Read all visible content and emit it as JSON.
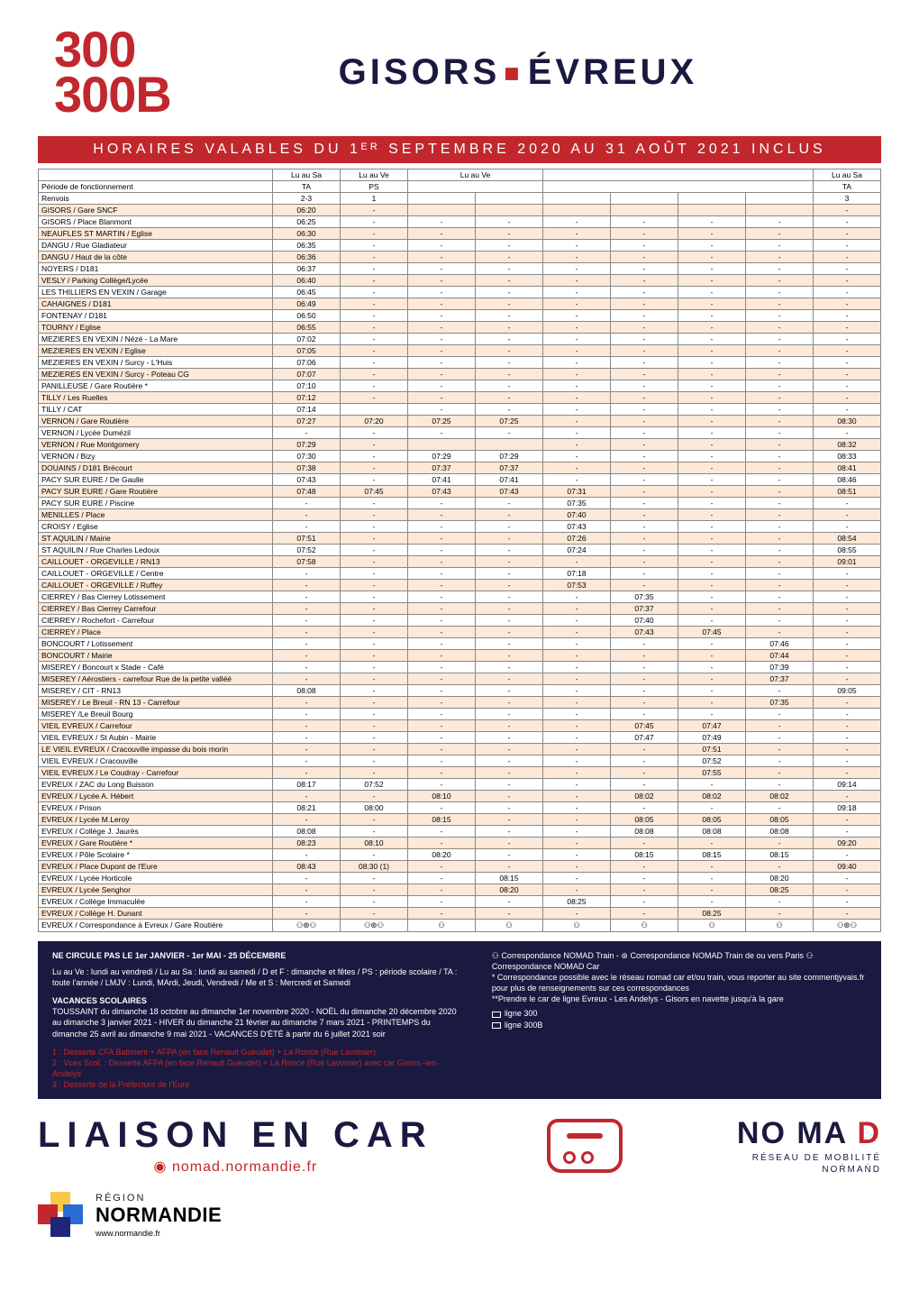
{
  "colors": {
    "accent": "#c1272d",
    "dark": "#1a1a40",
    "zebra_a": "#fde9d9",
    "zebra_b": "#ffffff",
    "footer_bg": "#1a1a40",
    "validity_bg": "#c1272d",
    "nomad_red": "#c1272d",
    "nomad_dark": "#1a1a40",
    "region_yellow": "#f7c948",
    "region_red": "#c1272d",
    "region_blue": "#2a6bd4",
    "region_dark": "#1f267a"
  },
  "header": {
    "line1": "300",
    "line2": "300B",
    "from": "GISORS",
    "to": "ÉVREUX"
  },
  "validity": "HORAIRES  VALABLES  DU  1ᴱᴿ  SEPTEMBRE  2020  AU  31  AOÛT  2021  INCLUS",
  "table": {
    "day_headers": [
      "Lu au Sa",
      "Lu au Ve",
      "Lu au Ve",
      "",
      "",
      "Lu au Sa",
      "",
      "",
      "Lu au Sa"
    ],
    "day_colspan": [
      1,
      1,
      2,
      0,
      4,
      0,
      0,
      0,
      1
    ],
    "period_label": "Période de fonctionnement",
    "period_row": [
      "TA",
      "PS",
      "",
      "",
      "",
      "PS",
      "",
      "",
      "TA"
    ],
    "period_colspan": [
      1,
      1,
      2,
      0,
      4,
      0,
      0,
      0,
      1
    ],
    "renvois_label": "Renvois",
    "renvois_row": [
      "2-3",
      "1",
      "",
      "",
      "",
      "",
      "",
      "",
      "3"
    ],
    "renvois_colspan": [
      1,
      1,
      1,
      1,
      1,
      1,
      1,
      1,
      1
    ],
    "stops": [
      "GISORS / Gare SNCF",
      "GISORS / Place Blanmont",
      "NEAUFLES ST MARTIN / Eglise",
      "DANGU / Rue Gladiateur",
      "DANGU / Haut de la côte",
      "NOYERS / D181",
      "VESLY / Parking Collège/Lycée",
      "LES THILLIERS EN VEXIN / Garage",
      "CAHAIGNES / D181",
      "FONTENAY / D181",
      "TOURNY / Eglise",
      "MEZIERES EN VEXIN / Nézé - La Mare",
      "MEZIERES EN VEXIN / Eglise",
      "MEZIERES EN VEXIN / Surcy - L'Huis",
      "MEZIERES EN VEXIN / Surcy - Poteau CG",
      "PANILLEUSE / Gare Routière *",
      "TILLY / Les Ruelles",
      "TILLY / CAT",
      "VERNON / Gare Routière",
      "VERNON / Lycée Dumézil",
      "VERNON / Rue Montgomery",
      "VERNON / Bizy",
      "DOUAINS / D181 Brécourt",
      "PACY SUR EURE / De Gaulle",
      "PACY SUR EURE / Gare Routière",
      "PACY SUR EURE / Piscine",
      "MENILLES / Place",
      "CROISY / Eglise",
      "ST AQUILIN / Mairie",
      "ST AQUILIN / Rue Charles Ledoux",
      "CAILLOUET - ORGEVILLE / RN13",
      "CAILLOUET - ORGEVILLE / Centre",
      "CAILLOUET - ORGEVILLE / Ruffey",
      "CIERREY / Bas Cierrey Lotissement",
      "CIERREY / Bas Cierrey Carrefour",
      "CIERREY / Rochefort - Carrefour",
      "CIERREY / Place",
      "BONCOURT / Lotissement",
      "BONCOURT / Mairie",
      "MISEREY / Boncourt x Stade - Café",
      "MISEREY / Aérostiers - carrefour Rue de la petite valléé",
      "MISEREY / CIT - RN13",
      "MISEREY / Le Breuil - RN 13 - Carrefour",
      "MISEREY /Le Breuil Bourg",
      "VIEIL EVREUX / Carrefour",
      "VIEIL EVREUX / St Aubin - Mairie",
      "LE VIEIL EVREUX / Cracouville impasse du bois morin",
      "VIEIL EVREUX / Cracouville",
      "VIEIL EVREUX / Le Coudray - Carrefour",
      "EVREUX / ZAC du Long Buisson",
      "EVREUX / Lycée A. Hébert",
      "EVREUX / Prison",
      "EVREUX / Lycée M.Leroy",
      "EVREUX / Collège J. Jaurès",
      "EVREUX / Gare Routière *",
      "EVREUX / Pôle Scolaire *",
      "EVREUX / Place Dupont de l'Eure",
      "EVREUX / Lycée Horticole",
      "EVREUX / Lycée Senghor",
      "EVREUX / Collège Immaculée",
      "EVREUX / Collège H. Dunant",
      "EVREUX / Correspondance à Evreux / Gare Routière"
    ],
    "times": [
      [
        "06:20",
        "-",
        "",
        "",
        "",
        "",
        "",
        "",
        "-"
      ],
      [
        "06:25",
        "-",
        "-",
        "-",
        "-",
        "-",
        "-",
        "-",
        "-"
      ],
      [
        "06:30",
        "-",
        "-",
        "-",
        "-",
        "-",
        "-",
        "-",
        "-"
      ],
      [
        "06:35",
        "-",
        "-",
        "-",
        "-",
        "-",
        "-",
        "-",
        "-"
      ],
      [
        "06:36",
        "-",
        "-",
        "-",
        "-",
        "-",
        "-",
        "-",
        "-"
      ],
      [
        "06:37",
        "-",
        "-",
        "-",
        "-",
        "-",
        "-",
        "-",
        "-"
      ],
      [
        "06:40",
        "-",
        "-",
        "-",
        "-",
        "-",
        "-",
        "-",
        "-"
      ],
      [
        "06:45",
        "-",
        "-",
        "-",
        "-",
        "-",
        "-",
        "-",
        "-"
      ],
      [
        "06:49",
        "-",
        "-",
        "-",
        "-",
        "-",
        "-",
        "-",
        "-"
      ],
      [
        "06:50",
        "-",
        "-",
        "-",
        "-",
        "-",
        "-",
        "-",
        "-"
      ],
      [
        "06:55",
        "-",
        "-",
        "-",
        "-",
        "-",
        "-",
        "-",
        "-"
      ],
      [
        "07:02",
        "-",
        "-",
        "-",
        "-",
        "-",
        "-",
        "-",
        "-"
      ],
      [
        "07:05",
        "-",
        "-",
        "-",
        "-",
        "-",
        "-",
        "-",
        "-"
      ],
      [
        "07:06",
        "-",
        "-",
        "-",
        "-",
        "-",
        "-",
        "-",
        "-"
      ],
      [
        "07:07",
        "-",
        "-",
        "-",
        "-",
        "-",
        "-",
        "-",
        "-"
      ],
      [
        "07:10",
        "-",
        "-",
        "-",
        "-",
        "-",
        "-",
        "-",
        "-"
      ],
      [
        "07:12",
        "-",
        "-",
        "-",
        "-",
        "-",
        "-",
        "-",
        "-"
      ],
      [
        "07:14",
        "",
        "-",
        "-",
        "-",
        "-",
        "-",
        "-",
        "-"
      ],
      [
        "07:27",
        "07:20",
        "07:25",
        "07:25",
        "-",
        "-",
        "-",
        "-",
        "08:30"
      ],
      [
        "-",
        "-",
        "-",
        "-",
        "-",
        "-",
        "-",
        "-",
        "-"
      ],
      [
        "07:29",
        "-",
        "",
        "",
        "-",
        "-",
        "-",
        "-",
        "08:32"
      ],
      [
        "07:30",
        "-",
        "07:29",
        "07:29",
        "-",
        "-",
        "-",
        "-",
        "08:33"
      ],
      [
        "07:38",
        "-",
        "07:37",
        "07:37",
        "-",
        "-",
        "-",
        "-",
        "08:41"
      ],
      [
        "07:43",
        "-",
        "07:41",
        "07:41",
        "-",
        "-",
        "-",
        "-",
        "08:46"
      ],
      [
        "07:48",
        "07:45",
        "07:43",
        "07:43",
        "07:31",
        "-",
        "-",
        "-",
        "08:51"
      ],
      [
        "-",
        "-",
        "-",
        "-",
        "07:35",
        "-",
        "-",
        "-",
        "-"
      ],
      [
        "-",
        "-",
        "-",
        "-",
        "07:40",
        "-",
        "-",
        "-",
        "-"
      ],
      [
        "-",
        "-",
        "-",
        "-",
        "07:43",
        "-",
        "-",
        "-",
        "-"
      ],
      [
        "07:51",
        "-",
        "-",
        "-",
        "07:26",
        "-",
        "-",
        "-",
        "08:54"
      ],
      [
        "07:52",
        "-",
        "-",
        "-",
        "07:24",
        "-",
        "-",
        "-",
        "08:55"
      ],
      [
        "07:58",
        "-",
        "-",
        "-",
        "-",
        "-",
        "-",
        "-",
        "09:01"
      ],
      [
        "-",
        "-",
        "-",
        "-",
        "07:18",
        "-",
        "-",
        "-",
        "-"
      ],
      [
        "-",
        "-",
        "-",
        "-",
        "07:53",
        "-",
        "-",
        "-",
        "-"
      ],
      [
        "-",
        "-",
        "-",
        "-",
        "-",
        "07:35",
        "-",
        "-",
        "-"
      ],
      [
        "-",
        "-",
        "-",
        "-",
        "-",
        "07:37",
        "-",
        "-",
        "-"
      ],
      [
        "-",
        "-",
        "-",
        "-",
        "-",
        "07:40",
        "-",
        "-",
        "-"
      ],
      [
        "-",
        "-",
        "-",
        "-",
        "-",
        "07:43",
        "07:45",
        "-",
        "-"
      ],
      [
        "-",
        "-",
        "-",
        "-",
        "-",
        "-",
        "-",
        "07:46",
        "-"
      ],
      [
        "-",
        "-",
        "-",
        "-",
        "-",
        "-",
        "-",
        "07:44",
        "-"
      ],
      [
        "-",
        "-",
        "-",
        "-",
        "-",
        "-",
        "-",
        "07:39",
        "-"
      ],
      [
        "-",
        "-",
        "-",
        "-",
        "-",
        "-",
        "-",
        "07:37",
        "-"
      ],
      [
        "08:08",
        "-",
        "-",
        "-",
        "-",
        "-",
        "-",
        "-",
        "09:05"
      ],
      [
        "-",
        "-",
        "-",
        "-",
        "-",
        "-",
        "-",
        "07:35",
        "-"
      ],
      [
        "-",
        "-",
        "-",
        "-",
        "-",
        "-",
        "-",
        "-",
        "-"
      ],
      [
        "-",
        "-",
        "-",
        "-",
        "-",
        "07:45",
        "07:47",
        "-",
        "-"
      ],
      [
        "-",
        "-",
        "-",
        "-",
        "-",
        "07:47",
        "07:49",
        "-",
        "-"
      ],
      [
        "-",
        "-",
        "-",
        "-",
        "-",
        "-",
        "07:51",
        "-",
        "-"
      ],
      [
        "-",
        "-",
        "-",
        "-",
        "-",
        "-",
        "07:52",
        "-",
        "-"
      ],
      [
        "-",
        "-",
        "-",
        "-",
        "-",
        "-",
        "07:55",
        "-",
        "-"
      ],
      [
        "08:17",
        "07:52",
        "-",
        "-",
        "-",
        "-",
        "-",
        "-",
        "09:14"
      ],
      [
        "-",
        "-",
        "08:10",
        "-",
        "-",
        "08:02",
        "08:02",
        "08:02",
        "-"
      ],
      [
        "08:21",
        "08:00",
        "-",
        "-",
        "-",
        "-",
        "-",
        "-",
        "09:18"
      ],
      [
        "-",
        "-",
        "08:15",
        "-",
        "-",
        "08:05",
        "08:05",
        "08:05",
        "-"
      ],
      [
        "08:08",
        "-",
        "-",
        "-",
        "-",
        "08:08",
        "08:08",
        "08:08",
        "-"
      ],
      [
        "08:23",
        "08:10",
        "-",
        "-",
        "-",
        "-",
        "-",
        "-",
        "09:20"
      ],
      [
        "-",
        "-",
        "08:20",
        "-",
        "-",
        "08:15",
        "08:15",
        "08:15",
        "-"
      ],
      [
        "08:43",
        "08:30 (1)",
        "-",
        "-",
        "-",
        "-",
        "-",
        "-",
        "09:40"
      ],
      [
        "-",
        "-",
        "-",
        "08:15",
        "-",
        "-",
        "-",
        "08:20",
        "-"
      ],
      [
        "-",
        "-",
        "-",
        "08:20",
        "-",
        "-",
        "-",
        "08:25",
        "-"
      ],
      [
        "-",
        "-",
        "-",
        "-",
        "08:25",
        "-",
        "-",
        "-",
        "-"
      ],
      [
        "-",
        "-",
        "-",
        "-",
        "-",
        "-",
        "08:25",
        "-",
        "-"
      ],
      [
        "⚇⊛⚇",
        "⚇⊛⚇",
        "⚇",
        "⚇",
        "⚇",
        "⚇",
        "⚇",
        "⚇",
        "⚇⊛⚇"
      ]
    ]
  },
  "footer": {
    "no_service": "NE CIRCULE PAS LE 1er JANVIER - 1er MAI - 25 DÉCEMBRE",
    "days_legend": "Lu au Ve : lundi au vendredi / Lu au Sa : lundi au samedi / D et F : dimanche et fêtes / PS : période scolaire / TA : toute l'année / LMJV : Lundi, MArdi, Jeudi, Vendredi / Me et S : Mercredi et Samedi",
    "vacances_title": "VACANCES SCOLAIRES",
    "vacances_body": "TOUSSAINT du dimanche 18 octobre au dimanche 1er novembre 2020 - NOËL du dimanche 20 décembre 2020 au dimanche 3 janvier 2021 - HIVER du dimanche 21 février au dimanche 7 mars 2021 - PRINTEMPS du dimanche 25 avril au dimanche 9 mai 2021 - VACANCES D'ÉTÉ à partir du 6 juillet 2021 soir",
    "notes": [
      "1 : Desserte CFA Batiment + AFPA (en face Renault Gueudet) + La Ronce (Rue Lavoisier)",
      "2 : Vces Scol, : Desserte AFPA (en face Renault Gueudet) + La Ronce (Rue Lavoisier) avec car Gisors -les- Andelys",
      "3 : Desserte de la Préfecture de l'Eure"
    ],
    "corr_line": "⚇ Correspondance NOMAD Train -  ⊛ Correspondance NOMAD Train de ou vers Paris  ⚇ Correspondance NOMAD Car",
    "star1": "* Correspondance possible avec le réseau nomad car et/ou train, vous reporter au site commentjyvais.fr pour plus de renseignements sur ces correspondances",
    "star2": "**Prendre le car de ligne Evreux - Les Andelys - Gisors en navette jusqu'à la gare",
    "legend300": "ligne 300",
    "legend300b": "ligne 300B"
  },
  "liaison": {
    "title": "LIAISON  EN  CAR",
    "url": "nomad.normandie.fr",
    "brand_big": "NO MA D",
    "brand_sub1": "RÉSEAU DE MOBILITÉ",
    "brand_sub2": "NOṘMAṄD"
  },
  "region": {
    "small": "RÉGION",
    "big": "NORMANDIE",
    "url": "www.normandie.fr"
  }
}
